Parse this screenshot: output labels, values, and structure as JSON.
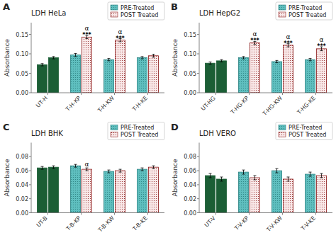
{
  "chart_data": [
    {
      "type": "bar",
      "panel_label": "A",
      "title": "LDH HeLa",
      "y_label": "Absorbance",
      "categories": [
        "UT-H",
        "T-H-KP",
        "T-H-KW",
        "T-H-KE"
      ],
      "ylim": [
        0,
        0.18
      ],
      "yticks": [
        {
          "value": 0.0,
          "label": "0.00"
        },
        0.05,
        {
          "value": 0.1,
          "label": "0.10"
        },
        0.15
      ],
      "grid": false,
      "legend": "upper right",
      "series": [
        {
          "name": "PRE-Treated",
          "color": "#2a8080",
          "colors": [
            "#1b5e35",
            "#5fbfbf",
            "#5fbfbf",
            "#5fbfbf"
          ],
          "values": [
            0.072,
            0.097,
            0.085,
            0.09
          ],
          "errors": [
            0.003,
            0.004,
            0.003,
            0.003
          ]
        },
        {
          "name": "POST Treated",
          "color": "#8b1a1a",
          "colors": [
            "#1b5e35",
            "#f9e8e8",
            "#f9e8e8",
            "#f9e8e8"
          ],
          "values": [
            0.09,
            0.143,
            0.135,
            0.095
          ],
          "errors": [
            0.003,
            0.004,
            0.004,
            0.004
          ],
          "annotations": [
            null,
            [
              "***",
              "α"
            ],
            [
              "***",
              "α"
            ],
            null
          ]
        }
      ]
    },
    {
      "type": "bar",
      "panel_label": "B",
      "title": "LDH HepG2",
      "y_label": "Absorbance",
      "categories": [
        "UT-HG",
        "T-HG-KP",
        "T-HG-KW",
        "T-HG-KE"
      ],
      "ylim": [
        0,
        0.18
      ],
      "yticks": [
        {
          "value": 0.0,
          "label": "0.00"
        },
        0.05,
        {
          "value": 0.1,
          "label": "0.10"
        },
        0.15
      ],
      "grid": false,
      "legend": "upper right",
      "series": [
        {
          "name": "PRE-Treated",
          "color": "#2a8080",
          "colors": [
            "#1b5e35",
            "#5fbfbf",
            "#5fbfbf",
            "#5fbfbf"
          ],
          "values": [
            0.076,
            0.09,
            0.08,
            0.085
          ],
          "errors": [
            0.003,
            0.003,
            0.003,
            0.003
          ]
        },
        {
          "name": "POST Treated",
          "color": "#8b1a1a",
          "colors": [
            "#1b5e35",
            "#f9e8e8",
            "#f9e8e8",
            "#f9e8e8"
          ],
          "values": [
            0.082,
            0.128,
            0.122,
            0.113
          ],
          "errors": [
            0.003,
            0.004,
            0.004,
            0.005
          ],
          "annotations": [
            null,
            [
              "***",
              "α"
            ],
            [
              "***",
              "α"
            ],
            [
              "***",
              "α"
            ]
          ]
        }
      ]
    },
    {
      "type": "bar",
      "panel_label": "C",
      "title": "LDH BHK",
      "y_label": "Absorbance",
      "categories": [
        "UT-B",
        "T-B-KP",
        "T-B-KW",
        "T-B-KE"
      ],
      "ylim": [
        0,
        0.1
      ],
      "yticks": [
        {
          "value": 0.0,
          "label": "0.00"
        },
        0.02,
        0.04,
        0.06,
        0.08
      ],
      "grid": false,
      "legend": "upper right",
      "series": [
        {
          "name": "PRE-Treated",
          "color": "#2a8080",
          "colors": [
            "#1b5e35",
            "#5fbfbf",
            "#5fbfbf",
            "#5fbfbf"
          ],
          "values": [
            0.064,
            0.067,
            0.059,
            0.062
          ],
          "errors": [
            0.002,
            0.002,
            0.002,
            0.002
          ]
        },
        {
          "name": "POST Treated",
          "color": "#8b1a1a",
          "colors": [
            "#1b5e35",
            "#f9e8e8",
            "#f9e8e8",
            "#f9e8e8"
          ],
          "values": [
            0.065,
            0.062,
            0.06,
            0.065
          ],
          "errors": [
            0.002,
            0.002,
            0.002,
            0.002
          ],
          "annotations": [
            null,
            [
              "α"
            ],
            null,
            null
          ]
        }
      ]
    },
    {
      "type": "bar",
      "panel_label": "D",
      "title": "LDH VERO",
      "y_label": "Absorbance",
      "categories": [
        "UT-V",
        "T-V-KP",
        "T-V-KW",
        "T-V-KE"
      ],
      "ylim": [
        0,
        0.1
      ],
      "yticks": [
        {
          "value": 0.0,
          "label": "0.00"
        },
        0.02,
        0.04,
        0.06,
        0.08
      ],
      "grid": false,
      "legend": "upper right",
      "series": [
        {
          "name": "PRE-Treated",
          "color": "#2a8080",
          "colors": [
            "#1b5e35",
            "#5fbfbf",
            "#5fbfbf",
            "#5fbfbf"
          ],
          "values": [
            0.053,
            0.058,
            0.06,
            0.055
          ],
          "errors": [
            0.003,
            0.003,
            0.003,
            0.003
          ]
        },
        {
          "name": "POST Treated",
          "color": "#8b1a1a",
          "colors": [
            "#1b5e35",
            "#f9e8e8",
            "#f9e8e8",
            "#f9e8e8"
          ],
          "values": [
            0.048,
            0.05,
            0.048,
            0.053
          ],
          "errors": [
            0.003,
            0.003,
            0.003,
            0.003
          ]
        }
      ]
    }
  ]
}
